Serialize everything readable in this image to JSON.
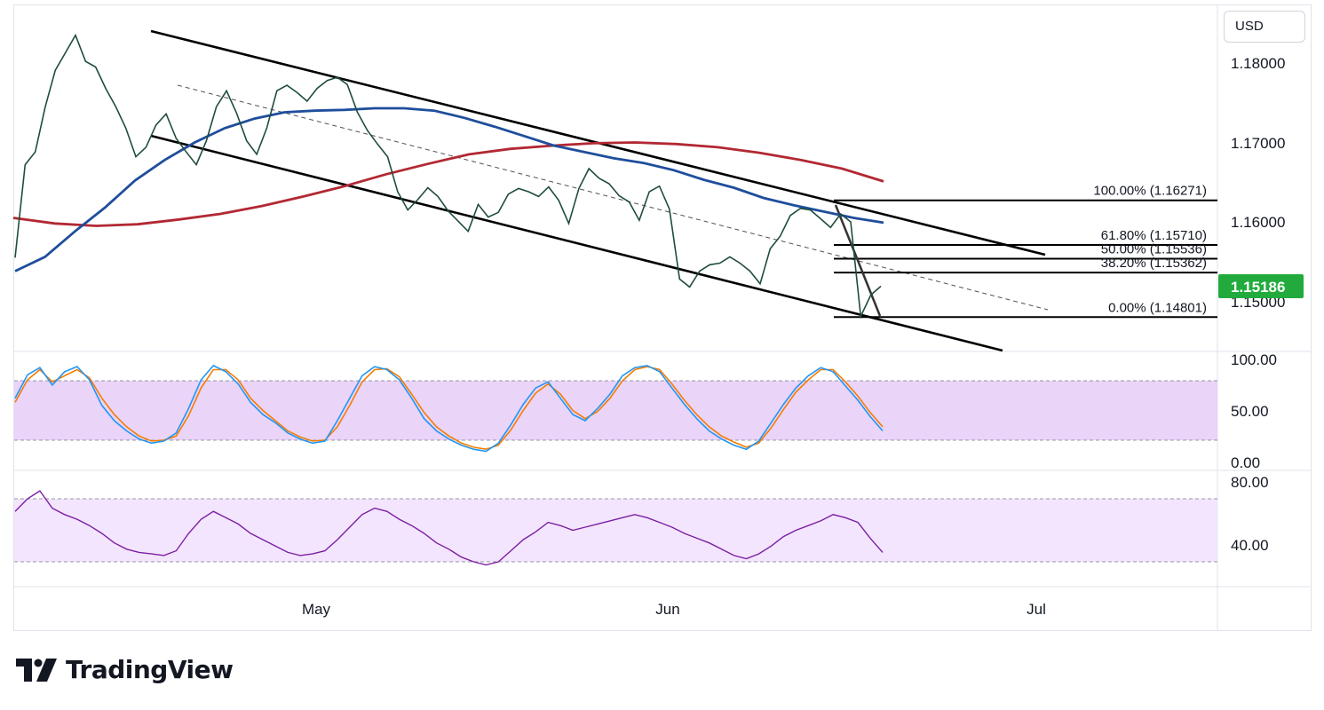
{
  "currency": "USD",
  "brand": {
    "name": "TradingView"
  },
  "colors": {
    "ma200": "#b22833",
    "ma50": "#1f4e9c",
    "stoch_k": "#2196f3",
    "stoch_d": "#f57c00",
    "rsi": "#7b1fa2",
    "stoch_band": "#e6cdf7",
    "rsi_band": "#f3e5fd",
    "last_price": "#22ab3c"
  },
  "price_axis": {
    "ticks": [
      "1.18000",
      "1.17000",
      "1.16000",
      "1.15000"
    ]
  },
  "last_price": "1.15186",
  "fibonacci": [
    {
      "label": "100.00% (1.16271)",
      "price": 1.16271
    },
    {
      "label": "61.80% (1.15710)",
      "price": 1.1571
    },
    {
      "label": "50.00% (1.15536)",
      "price": 1.15536
    },
    {
      "label": "38.20% (1.15362)",
      "price": 1.15362
    },
    {
      "label": "0.00% (1.14801)",
      "price": 1.14801
    }
  ],
  "stochastic": {
    "ticks": [
      "100.00",
      "50.00",
      "0.00"
    ],
    "upper": 80,
    "lower": 20
  },
  "rsi": {
    "ticks": [
      "80.00",
      "40.00"
    ],
    "upper": 70,
    "lower": 30
  },
  "time_axis": {
    "labels": [
      "May",
      "Jun",
      "Jul"
    ]
  },
  "chart_data": {
    "type": "line",
    "x_labels": [
      "May",
      "Jun",
      "Jul"
    ],
    "ylim": [
      1.1438,
      1.1848
    ],
    "series": [
      {
        "values": [
          1.1555,
          1.1672,
          1.1688,
          1.1745,
          1.1791,
          1.1813,
          1.1835,
          1.1802,
          1.1795,
          1.1768,
          1.1745,
          1.1718,
          1.1682,
          1.1694,
          1.1722,
          1.1736,
          1.1705,
          1.1688,
          1.1672,
          1.1702,
          1.1745,
          1.1765,
          1.1737,
          1.1702,
          1.1685,
          1.1718,
          1.1765,
          1.1772,
          1.1763,
          1.1752,
          1.1768,
          1.1778,
          1.1782,
          1.1773,
          1.1738,
          1.1715,
          1.1698,
          1.1682,
          1.1638,
          1.1615,
          1.1628,
          1.1643,
          1.1632,
          1.1614,
          1.1601,
          1.1588,
          1.1622,
          1.1606,
          1.1612,
          1.1635,
          1.1642,
          1.1638,
          1.1632,
          1.1644,
          1.1627,
          1.1598,
          1.1642,
          1.1667,
          1.1655,
          1.1648,
          1.1633,
          1.1625,
          1.1602,
          1.1638,
          1.1645,
          1.1616,
          1.1528,
          1.1518,
          1.1538,
          1.1546,
          1.1548,
          1.1556,
          1.1548,
          1.1538,
          1.1522,
          1.1566,
          1.1582,
          1.1608,
          1.1617,
          1.1615,
          1.1604,
          1.1593,
          1.161,
          1.16,
          1.1481,
          1.1508,
          1.1519
        ]
      },
      {
        "values": [
          1.1538,
          1.1556,
          1.1588,
          1.1618,
          1.1652,
          1.1678,
          1.17,
          1.1718,
          1.173,
          1.1738,
          1.174,
          1.1741,
          1.1743,
          1.1743,
          1.174,
          1.1731,
          1.172,
          1.1708,
          1.1696,
          1.1688,
          1.168,
          1.1674,
          1.1665,
          1.1653,
          1.1643,
          1.163,
          1.1621,
          1.1613,
          1.1605,
          1.1599
        ]
      },
      {
        "values": [
          1.1605,
          1.1598,
          1.1595,
          1.1597,
          1.1603,
          1.161,
          1.162,
          1.1632,
          1.1645,
          1.166,
          1.1673,
          1.1685,
          1.1692,
          1.1696,
          1.1699,
          1.17,
          1.1698,
          1.1694,
          1.1687,
          1.1678,
          1.1667,
          1.1651
        ]
      }
    ],
    "stochastic": {
      "k": [
        62,
        85,
        92,
        75,
        88,
        93,
        80,
        55,
        40,
        30,
        22,
        18,
        20,
        28,
        52,
        80,
        94,
        88,
        76,
        58,
        46,
        38,
        28,
        22,
        18,
        20,
        40,
        62,
        84,
        93,
        90,
        80,
        62,
        42,
        30,
        22,
        16,
        12,
        10,
        18,
        36,
        56,
        72,
        78,
        62,
        46,
        40,
        52,
        66,
        84,
        92,
        94,
        88,
        72,
        56,
        42,
        30,
        22,
        16,
        12,
        20,
        38,
        56,
        72,
        84,
        92,
        88,
        74,
        60,
        44,
        30
      ],
      "d": [
        58,
        80,
        90,
        78,
        84,
        90,
        82,
        62,
        46,
        34,
        25,
        20,
        21,
        25,
        45,
        72,
        90,
        90,
        80,
        62,
        50,
        40,
        30,
        24,
        20,
        21,
        34,
        55,
        78,
        90,
        91,
        83,
        66,
        48,
        34,
        25,
        18,
        14,
        12,
        16,
        31,
        50,
        67,
        76,
        66,
        50,
        42,
        49,
        62,
        79,
        90,
        93,
        90,
        76,
        60,
        46,
        34,
        25,
        19,
        14,
        18,
        33,
        51,
        68,
        80,
        90,
        90,
        78,
        64,
        48,
        34
      ]
    },
    "rsi_values": [
      62,
      70,
      75,
      64,
      60,
      57,
      53,
      48,
      42,
      38,
      36,
      35,
      34,
      37,
      48,
      57,
      62,
      58,
      54,
      48,
      44,
      40,
      36,
      34,
      35,
      37,
      44,
      52,
      60,
      64,
      62,
      57,
      53,
      48,
      42,
      38,
      33,
      30,
      28,
      30,
      37,
      44,
      49,
      55,
      53,
      50,
      52,
      54,
      56,
      58,
      60,
      58,
      55,
      52,
      48,
      45,
      42,
      38,
      34,
      32,
      35,
      40,
      46,
      50,
      53,
      56,
      60,
      58,
      55,
      45,
      36
    ]
  }
}
